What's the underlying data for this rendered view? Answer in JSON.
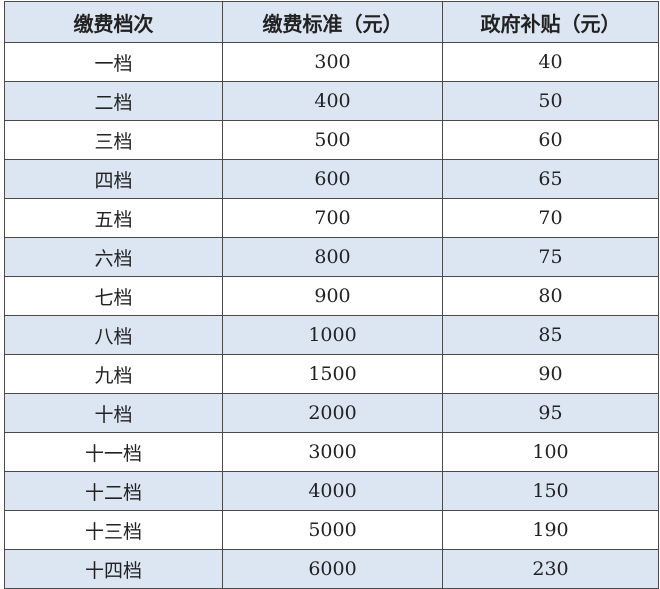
{
  "table": {
    "headers": [
      "缴费档次",
      "缴费标准（元）",
      "政府补贴（元）"
    ],
    "rows": [
      [
        "一档",
        "300",
        "40"
      ],
      [
        "二档",
        "400",
        "50"
      ],
      [
        "三档",
        "500",
        "60"
      ],
      [
        "四档",
        "600",
        "65"
      ],
      [
        "五档",
        "700",
        "70"
      ],
      [
        "六档",
        "800",
        "75"
      ],
      [
        "七档",
        "900",
        "80"
      ],
      [
        "八档",
        "1000",
        "85"
      ],
      [
        "九档",
        "1500",
        "90"
      ],
      [
        "十档",
        "2000",
        "95"
      ],
      [
        "十一档",
        "3000",
        "100"
      ],
      [
        "十二档",
        "4000",
        "150"
      ],
      [
        "十三档",
        "5000",
        "190"
      ],
      [
        "十四档",
        "6000",
        "230"
      ]
    ],
    "colors": {
      "header_bg": "#dce6f2",
      "alt_row_bg": "#dce6f2",
      "border": "#4a4a4a"
    }
  }
}
